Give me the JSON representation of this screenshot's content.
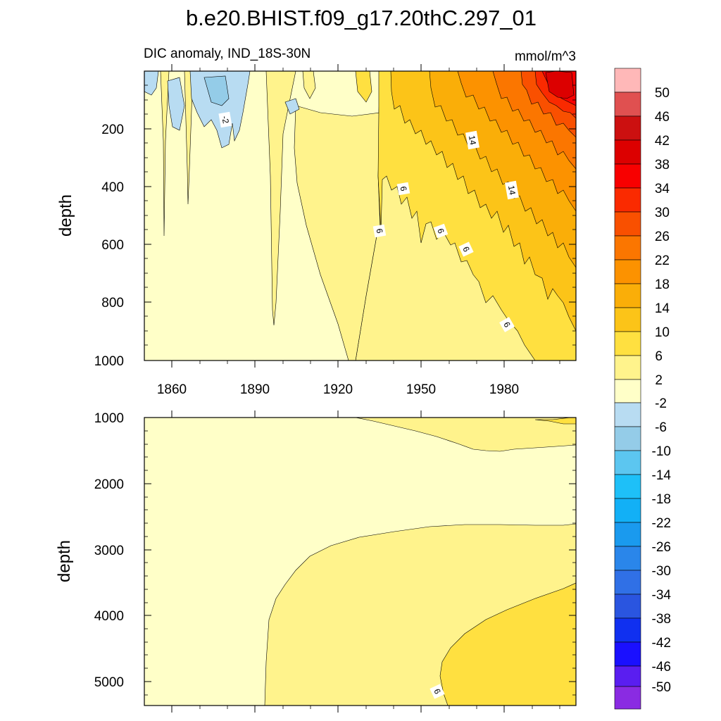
{
  "title": "b.e20.BHIST.f09_g17.20thC.297_01",
  "subtitle_left": "DIC anomaly, IND_18S-30N",
  "subtitle_right": "mmol/m^3",
  "colors": {
    "c_m50": "#8a2be2",
    "c_m46": "#5a1ef0",
    "c_m42": "#1a10ff",
    "c_m38": "#1030f0",
    "c_m34": "#2a55e0",
    "c_m30": "#3070e6",
    "c_m26": "#2a86ea",
    "c_m22": "#1a9aee",
    "c_m18": "#12b0f6",
    "c_m14": "#1ec0f8",
    "c_m10": "#5cc6f0",
    "c_m6": "#94cce8",
    "c_m2": "#b8dcf2",
    "c_p2": "#ffffc8",
    "c_p6": "#fff38c",
    "c_p10": "#ffe040",
    "c_p14": "#fcc418",
    "c_p18": "#faae08",
    "c_p22": "#fc9200",
    "c_p26": "#fb7600",
    "c_p30": "#f95000",
    "c_p34": "#fa2a00",
    "c_p38": "#f80000",
    "c_p42": "#dc0000",
    "c_p46": "#cc1010",
    "c_p50": "#e05050",
    "c_top": "#ffb8b8"
  },
  "chart_data": [
    {
      "type": "contour",
      "panel": "upper",
      "title": "DIC anomaly, IND_18S-30N",
      "units": "mmol/m^3",
      "xlabel": "",
      "ylabel": "depth",
      "xlim": [
        1850,
        2005
      ],
      "ylim": [
        1000,
        0
      ],
      "x_ticks": [
        "1860",
        "1890",
        "1920",
        "1950",
        "1980"
      ],
      "y_ticks": [
        "200",
        "400",
        "600",
        "800",
        "1000"
      ],
      "contour_labels": [
        "-2",
        "14",
        "6",
        "14",
        "6",
        "6",
        "6",
        "6"
      ],
      "contour_interval": 4
    },
    {
      "type": "contour",
      "panel": "lower",
      "xlabel": "",
      "ylabel": "depth",
      "xlim": [
        1850,
        2005
      ],
      "ylim": [
        5350,
        1000
      ],
      "y_ticks": [
        "1000",
        "2000",
        "3000",
        "4000",
        "5000"
      ],
      "contour_labels": [
        "6"
      ],
      "contour_interval": 4
    }
  ],
  "colorbar": {
    "labels": [
      "50",
      "46",
      "42",
      "38",
      "34",
      "30",
      "26",
      "22",
      "18",
      "14",
      "10",
      "6",
      "2",
      "-2",
      "-6",
      "-10",
      "-14",
      "-18",
      "-22",
      "-26",
      "-30",
      "-34",
      "-38",
      "-42",
      "-46",
      "-50"
    ]
  }
}
